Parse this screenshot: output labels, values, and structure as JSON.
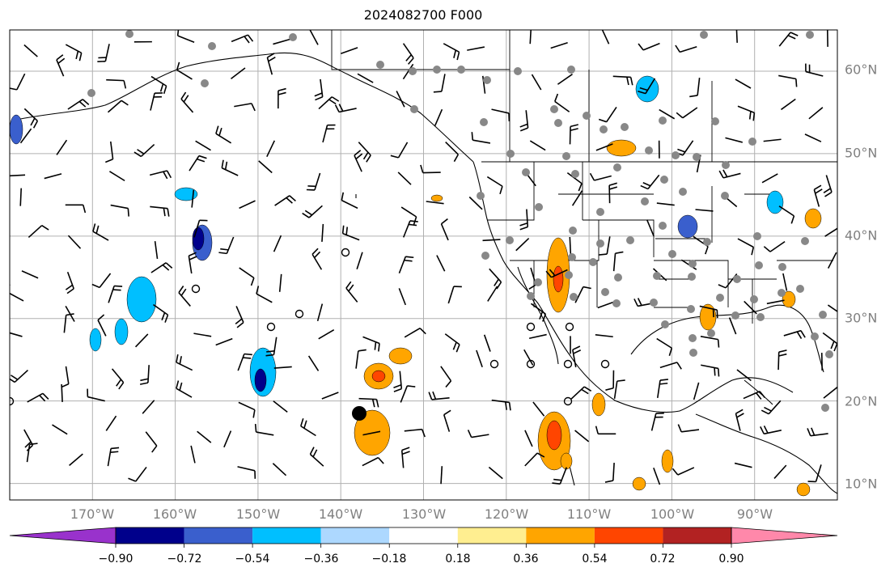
{
  "title": "2024082700 F000",
  "map": {
    "projection": "PlateCarree",
    "lon_range": [
      -180,
      -80
    ],
    "lat_range": [
      8,
      65
    ],
    "gridlines": true,
    "grid_color": "#b0b0b0",
    "lat_labels": [
      "60°N",
      "50°N",
      "40°N",
      "30°N",
      "20°N",
      "10°N"
    ],
    "lon_labels": [
      "170°W",
      "160°W",
      "150°W",
      "140°W",
      "130°W",
      "120°W",
      "110°W",
      "100°W",
      "90°W"
    ],
    "label_color": "#808080"
  },
  "colorbar": {
    "orientation": "horizontal",
    "extend": "both",
    "tick_labels": [
      "−0.90",
      "−0.72",
      "−0.54",
      "−0.36",
      "−0.18",
      "0.18",
      "0.36",
      "0.54",
      "0.72",
      "0.90"
    ],
    "colors": [
      "#9932cc",
      "#00008b",
      "#3a5fcd",
      "#00bfff",
      "#add8ff",
      "#ffffff",
      "#ffee90",
      "#ffa500",
      "#ff4500",
      "#b22222",
      "#ff88aa"
    ]
  },
  "layers": {
    "wind_barbs": true,
    "station_markers": {
      "color": "#888888"
    },
    "calm_circles": true,
    "tropical_marker": {
      "color": "#000000"
    }
  }
}
